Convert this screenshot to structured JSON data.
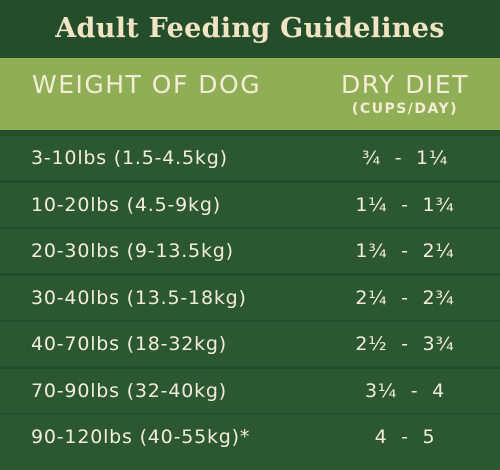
{
  "title": "Adult Feeding Guidelines",
  "columns": {
    "weight_header": "WEIGHT OF DOG",
    "diet_header": "DRY DIET",
    "diet_unit": "(CUPS/DAY)"
  },
  "rows": [
    {
      "weight": "3-10lbs (1.5-4.5kg)",
      "cups": "¾  -  1¼"
    },
    {
      "weight": "10-20lbs (4.5-9kg)",
      "cups": "1¼  -  1¾"
    },
    {
      "weight": "20-30lbs (9-13.5kg)",
      "cups": "1¾  -  2¼"
    },
    {
      "weight": "30-40lbs (13.5-18kg)",
      "cups": "2¼  -  2¾"
    },
    {
      "weight": "40-70lbs (18-32kg)",
      "cups": "2½  -  3¾"
    },
    {
      "weight": "70-90lbs (32-40kg)",
      "cups": "3¼  -  4"
    },
    {
      "weight": "90-120lbs (40-55kg)*",
      "cups": "4  -  5"
    }
  ],
  "colors": {
    "background": "#244d2c",
    "row": "#2c5733",
    "header": "#8fae55",
    "title_text": "#f0e4c2",
    "text": "#f3ecd8"
  }
}
